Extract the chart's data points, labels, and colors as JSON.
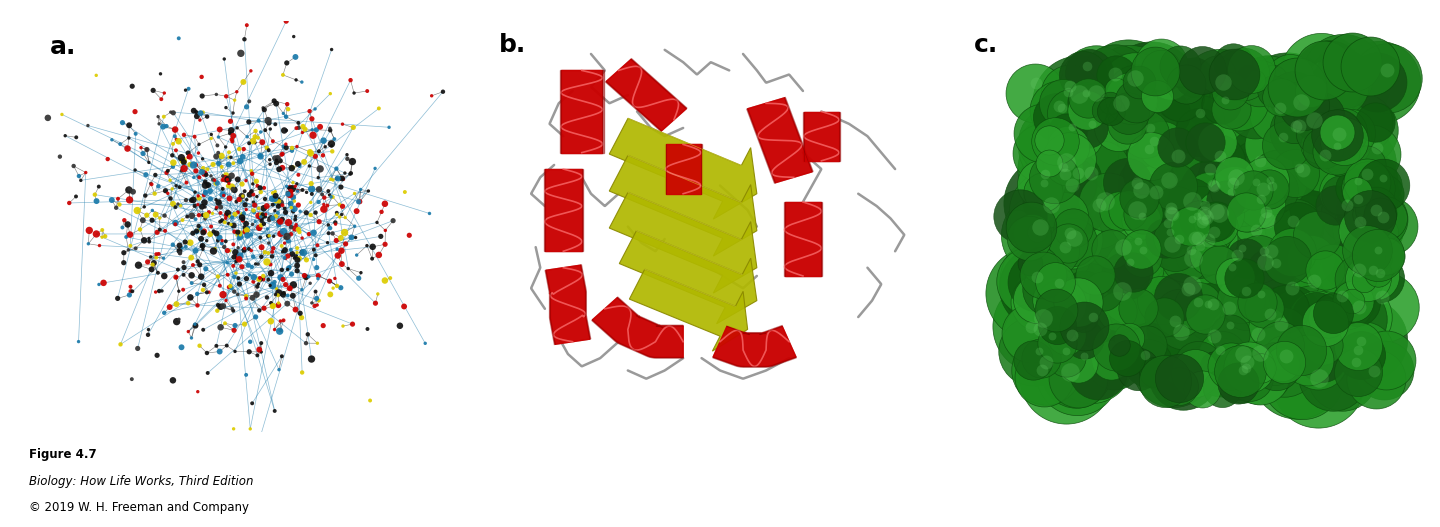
{
  "figure_title": "Figure 4.7",
  "figure_line2": "Biology: How Life Works, Third Edition",
  "figure_line3": "© 2019 W. H. Freeman and Company",
  "labels": [
    "a.",
    "b.",
    "c."
  ],
  "label_fontsize": 18,
  "label_fontweight": "bold",
  "caption_title_fontsize": 8.5,
  "caption_fontsize": 8.5,
  "background_color": "#ffffff",
  "figsize": [
    14.4,
    5.27
  ],
  "dpi": 100,
  "atom_colors": [
    "#111111",
    "#cc0000",
    "#cc0000",
    "#cc0000",
    "#1a7aaa",
    "#1a7aaa",
    "#ddcc00",
    "#ddcc00",
    "#111111",
    "#111111",
    "#111111",
    "#333333"
  ],
  "helix_color": "#cc0000",
  "sheet_color": "#b0b800",
  "loop_color": "#888888",
  "green_colors": [
    "#1a7a1a",
    "#1e8c1e",
    "#166816",
    "#229022",
    "#0f5a0f",
    "#2a9e2a",
    "#145014",
    "#1c7c1c"
  ]
}
